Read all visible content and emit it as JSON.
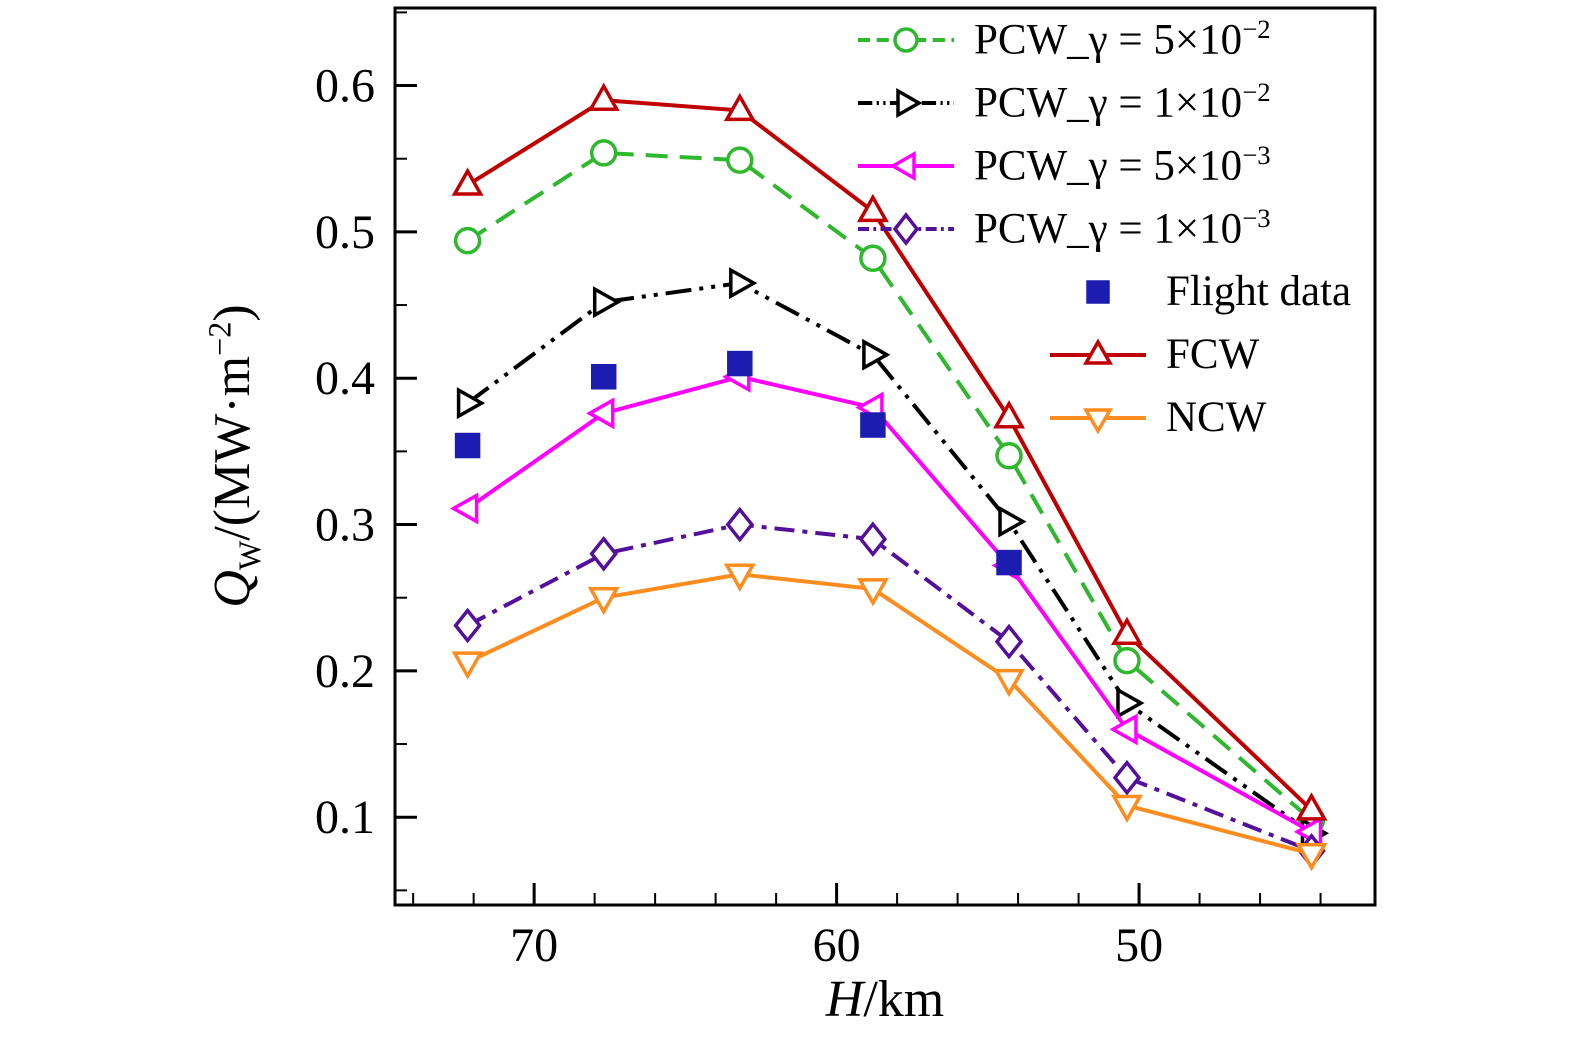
{
  "figure": {
    "background": "#ffffff",
    "frame_color": "#000000"
  },
  "axes": {
    "ylabel": {
      "var": "Q",
      "sub": "W",
      "mid": "/(MW·m",
      "sup": "−2",
      "end": ")"
    },
    "xlabel": {
      "var": "H",
      "rest": "/km"
    }
  },
  "chart_data": {
    "type": "line",
    "title": "",
    "xlabel": "H/km",
    "ylabel": "Q_W/(MW·m^−2)",
    "x_axis_reversed": true,
    "xlim": [
      74.6,
      42.2
    ],
    "ylim": [
      0.04,
      0.653
    ],
    "x_ticks": [
      70,
      60,
      50
    ],
    "y_ticks": [
      0.1,
      0.2,
      0.3,
      0.4,
      0.5,
      0.6
    ],
    "x_minor_step": 2,
    "y_minor_step": 0.05,
    "legend_position": "top-right-inside",
    "grid": false,
    "x": [
      72.2,
      67.7,
      63.2,
      58.8,
      54.3,
      50.4,
      44.3
    ],
    "series": [
      {
        "id": "pcw-5e-2",
        "label": {
          "text": "PCW_γ = 5×10",
          "sup": "−2"
        },
        "color": "#2eb82e",
        "dash": [
          22,
          12
        ],
        "marker": "circle",
        "line": true,
        "indent": false,
        "values": [
          0.494,
          0.554,
          0.549,
          0.482,
          0.347,
          0.207,
          0.098
        ]
      },
      {
        "id": "pcw-1e-2",
        "label": {
          "text": "PCW_γ = 1×10",
          "sup": "−2"
        },
        "color": "#000000",
        "dash": [
          26,
          8,
          4,
          8,
          4,
          8
        ],
        "marker": "triangle-right",
        "line": true,
        "indent": false,
        "values": [
          0.383,
          0.452,
          0.465,
          0.416,
          0.302,
          0.178,
          0.089
        ]
      },
      {
        "id": "pcw-5e-3",
        "label": {
          "text": "PCW_γ = 5×10",
          "sup": "−3"
        },
        "color": "#ff00ff",
        "dash": [],
        "marker": "triangle-left",
        "line": true,
        "indent": false,
        "values": [
          0.311,
          0.376,
          0.401,
          0.38,
          0.272,
          0.16,
          0.09
        ]
      },
      {
        "id": "pcw-1e-3",
        "label": {
          "text": "PCW_γ = 1×10",
          "sup": "−3"
        },
        "color": "#55109b",
        "dash": [
          20,
          8,
          5,
          8
        ],
        "marker": "diamond",
        "line": true,
        "indent": false,
        "values": [
          0.231,
          0.28,
          0.3,
          0.29,
          0.22,
          0.127,
          0.077
        ]
      },
      {
        "id": "flight-data",
        "label": {
          "text": "Flight data",
          "sup": ""
        },
        "color": "#1c1cb0",
        "dash": [],
        "marker": "square",
        "line": false,
        "indent": true,
        "values": [
          0.354,
          0.401,
          0.41,
          0.368,
          0.274
        ]
      },
      {
        "id": "fcw",
        "label": {
          "text": "FCW",
          "sup": ""
        },
        "color": "#c00000",
        "dash": [],
        "marker": "triangle-up",
        "line": true,
        "indent": true,
        "values": [
          0.532,
          0.59,
          0.583,
          0.514,
          0.373,
          0.225,
          0.105
        ]
      },
      {
        "id": "ncw",
        "label": {
          "text": "NCW",
          "sup": ""
        },
        "color": "#ff8c1e",
        "dash": [],
        "marker": "triangle-down",
        "line": true,
        "indent": true,
        "values": [
          0.206,
          0.25,
          0.266,
          0.256,
          0.194,
          0.108,
          0.075
        ]
      }
    ]
  }
}
